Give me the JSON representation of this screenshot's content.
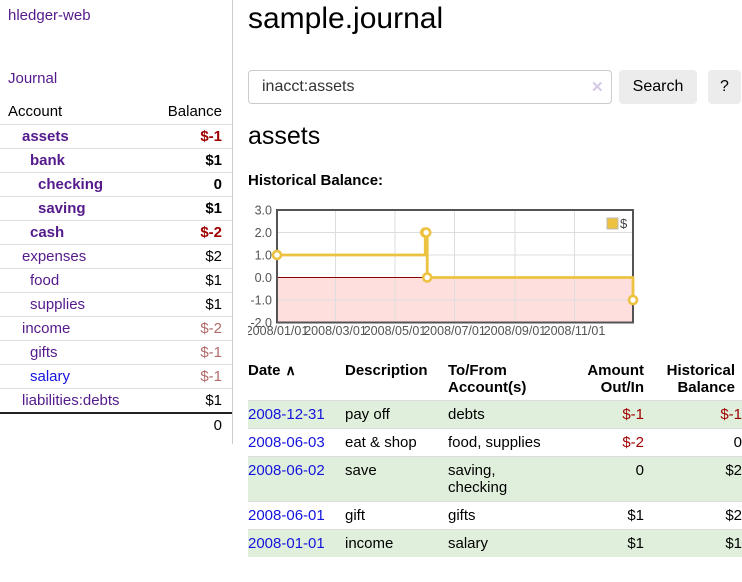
{
  "colors": {
    "link_purple": "#551a8b",
    "link_blue": "#1414dd",
    "negative_strong": "#a00000",
    "negative_muted": "#b36a6a",
    "row_green": "#e0efdb",
    "chart_line": "#edc240",
    "chart_negative_fill": "#ffdede",
    "chart_zero_line": "#8b0000",
    "chart_border": "#545454",
    "chart_grid": "#dddddd",
    "chart_tick_text": "#545454"
  },
  "brand": {
    "title": "hledger-web"
  },
  "nav": {
    "journal": "Journal"
  },
  "sidebar_table": {
    "account_header": "Account",
    "balance_header": "Balance",
    "rows": [
      {
        "name": "assets",
        "balance": "$-1",
        "depth": 1,
        "bold": true,
        "balance_style": "strong-negative",
        "link": "purple"
      },
      {
        "name": "bank",
        "balance": "$1",
        "depth": 2,
        "bold": true,
        "balance_style": "bold",
        "link": "purple"
      },
      {
        "name": "checking",
        "balance": "0",
        "depth": 3,
        "bold": true,
        "balance_style": "bold",
        "link": "purple"
      },
      {
        "name": "saving",
        "balance": "$1",
        "depth": 3,
        "bold": true,
        "balance_style": "bold",
        "link": "purple"
      },
      {
        "name": "cash",
        "balance": "$-2",
        "depth": 2,
        "bold": true,
        "balance_style": "strong-negative",
        "link": "purple"
      },
      {
        "name": "expenses",
        "balance": "$2",
        "depth": 1,
        "bold": false,
        "balance_style": "normal",
        "link": "purple"
      },
      {
        "name": "food",
        "balance": "$1",
        "depth": 2,
        "bold": false,
        "balance_style": "normal",
        "link": "purple"
      },
      {
        "name": "supplies",
        "balance": "$1",
        "depth": 2,
        "bold": false,
        "balance_style": "normal",
        "link": "purple"
      },
      {
        "name": "income",
        "balance": "$-2",
        "depth": 1,
        "bold": false,
        "balance_style": "muted-negative",
        "link": "purple"
      },
      {
        "name": "gifts",
        "balance": "$-1",
        "depth": 2,
        "bold": false,
        "balance_style": "muted-negative",
        "link": "purple"
      },
      {
        "name": "salary",
        "balance": "$-1",
        "depth": 2,
        "bold": false,
        "balance_style": "muted-negative",
        "link": "blue"
      },
      {
        "name": "liabilities:debts",
        "balance": "$1",
        "depth": 1,
        "bold": false,
        "balance_style": "normal",
        "link": "purple"
      }
    ],
    "total": "0"
  },
  "page": {
    "title": "sample.journal",
    "account_heading": "assets",
    "chart_heading": "Historical Balance:"
  },
  "search": {
    "value": "inacct:assets",
    "clear_icon": "✕",
    "search_label": "Search",
    "help_label": "?"
  },
  "chart_data": {
    "type": "line",
    "step": true,
    "title": "Historical Balance",
    "legend": "$",
    "legend_position": "top-right",
    "grid": true,
    "negative_region_shaded": true,
    "ylim": [
      -2,
      3
    ],
    "xlim": [
      "2008-01-01",
      "2008-12-31"
    ],
    "y_ticks": [
      3.0,
      2.0,
      1.0,
      0.0,
      -1.0,
      -2.0
    ],
    "x_ticks": [
      "2008/01/01",
      "2008/03/01",
      "2008/05/01",
      "2008/07/01",
      "2008/09/01",
      "2008/11/01"
    ],
    "series": [
      {
        "name": "$",
        "points": [
          [
            "2008-01-01",
            1
          ],
          [
            "2008-06-01",
            2
          ],
          [
            "2008-06-02",
            2
          ],
          [
            "2008-06-03",
            0
          ],
          [
            "2008-12-31",
            -1
          ]
        ]
      }
    ]
  },
  "register": {
    "headers": {
      "date": "Date",
      "sort_arrow": "∧",
      "description": "Description",
      "accounts": "To/From Account(s)",
      "amount": "Amount Out/In",
      "balance": "Historical Balance"
    },
    "rows": [
      {
        "date": "2008-12-31",
        "description": "pay off",
        "accounts": "debts",
        "amount": "$-1",
        "balance": "$-1",
        "amount_negative": true,
        "balance_negative": true
      },
      {
        "date": "2008-06-03",
        "description": "eat & shop",
        "accounts": "food, supplies",
        "amount": "$-2",
        "balance": "0",
        "amount_negative": true,
        "balance_negative": false
      },
      {
        "date": "2008-06-02",
        "description": "save",
        "accounts": "saving, checking",
        "amount": "0",
        "balance": "$2",
        "amount_negative": false,
        "balance_negative": false
      },
      {
        "date": "2008-06-01",
        "description": "gift",
        "accounts": "gifts",
        "amount": "$1",
        "balance": "$2",
        "amount_negative": false,
        "balance_negative": false
      },
      {
        "date": "2008-01-01",
        "description": "income",
        "accounts": "salary",
        "amount": "$1",
        "balance": "$1",
        "amount_negative": false,
        "balance_negative": false
      }
    ]
  }
}
